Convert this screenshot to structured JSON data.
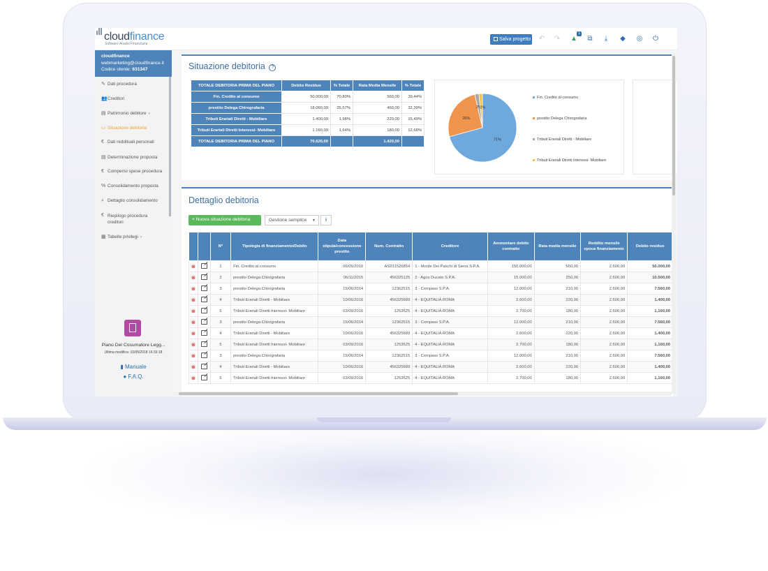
{
  "app": {
    "logo_main": "cloud",
    "logo_accent": "finance",
    "logo_sub": "Software Analisi Finanziaria",
    "save_label": "Salva progetto",
    "notification_count": "1"
  },
  "user": {
    "name": "cloudfinance",
    "email": "webmarketing@cloudfinance.it",
    "code_label": "Codice utente:",
    "code": "631347"
  },
  "sidebar": {
    "items": [
      {
        "label": "Dati procedura",
        "icon": "pencil-icon"
      },
      {
        "label": "Creditori",
        "icon": "users-icon"
      },
      {
        "label": "Patrimonio debitore",
        "icon": "document-icon"
      },
      {
        "label": "Situazione debitoria",
        "icon": "card-icon"
      },
      {
        "label": "Dati reddituali personali",
        "icon": "euro-icon"
      },
      {
        "label": "Determinazione proposta",
        "icon": "document-icon"
      },
      {
        "label": "Compensi spese procedura",
        "icon": "euro-icon"
      },
      {
        "label": "Consolidamento proposta",
        "icon": "percent-icon"
      },
      {
        "label": "Dettaglio consolidamento",
        "icon": "search-icon"
      },
      {
        "label": "Riepilogo procedura creditori",
        "icon": "euro-icon"
      },
      {
        "label": "Tabelle privilegi",
        "icon": "table-icon"
      }
    ],
    "app_name": "Piano Del Cosumatore Legg...",
    "last_modified": "Ultima modifica: 10/05/2018 16:33:18",
    "manual": "Manuale",
    "faq": "F.A.Q."
  },
  "situazione": {
    "title": "Situazione debitoria",
    "headers": [
      "TOTALE DEBITORIA PRIMA DEL PIANO",
      "Debito Residuo",
      "% Totale",
      "Rata Media Mensile",
      "% Totale"
    ],
    "rows": [
      [
        "Fin. Credito al consumo",
        "50.000,00",
        "70,80%",
        "560,00",
        "39,44%"
      ],
      [
        "prestito Delega Chirografaria",
        "18.060,00",
        "25,57%",
        "460,00",
        "32,39%"
      ],
      [
        "Tributi Erariali Diretti - Mobiliare",
        "1.400,00",
        "1,98%",
        "220,00",
        "15,49%"
      ],
      [
        "Tributi Erariali Diretti Interessi- Mobiliare",
        "1.160,00",
        "1,64%",
        "180,00",
        "12,68%"
      ]
    ],
    "total": [
      "TOTALE DEBITORIA PRIMA DEL PIANO",
      "70.620,00",
      "",
      "1.420,00",
      ""
    ]
  },
  "chart_data": {
    "type": "pie",
    "categories": [
      "Fin. Credito al consumo",
      "prestito Delega Chirografaria",
      "Tributi Erariali Diretti - Mobiliare",
      "Tributi Erariali Diretti Interessi- Mobiliare"
    ],
    "values": [
      70.8,
      25.57,
      1.98,
      1.64
    ],
    "data_labels": [
      "71%",
      "26%",
      "2%",
      "2%"
    ],
    "colors": [
      "#6fa8dc",
      "#f0954e",
      "#a8a8a8",
      "#f5c342"
    ],
    "legend_position": "right"
  },
  "dettaglio": {
    "title": "Dettaglio debitoria",
    "new_button": "Nuova situazione debitoria",
    "select_value": "Gestione semplice",
    "headers": [
      "",
      "",
      "N°",
      "Tipologia di finanziamento/Debito",
      "Data stipula/concessione prestito",
      "Num. Contratto",
      "Creditore",
      "Ammontare debito contratto",
      "Rata media mensile",
      "Reddito mensile epoca finanziamento",
      "Debito residuo"
    ],
    "rows": [
      [
        "1",
        "Fin. Credito al consumo",
        "06/05/2010",
        "AS231526854",
        "1 - Monte Dei Paschi di Siena S.P.A.",
        "150.000,00",
        "560,00",
        "2.600,00",
        "50.000,00"
      ],
      [
        "2",
        "prestito Delega Chirografaria",
        "06/11/2015",
        "456325125",
        "2 - Agos Ducato S.P.A.",
        "15.000,00",
        "250,00",
        "2.600,00",
        "10.500,00"
      ],
      [
        "3",
        "prestito Delega Chirografaria",
        "15/06/2014",
        "12362515",
        "3 - Compass S.P.A.",
        "12.000,00",
        "210,00",
        "2.600,00",
        "7.560,00"
      ],
      [
        "4",
        "Tributi Erariali Diretti - Mobiliare",
        "10/06/2016",
        "456325689",
        "4 - EQUITALIA ROMA",
        "2.600,00",
        "220,00",
        "2.600,00",
        "1.400,00"
      ],
      [
        "5",
        "Tributi Erariali Diretti Interessi- Mobiliare",
        "03/09/2016",
        "1253625",
        "4 - EQUITALIA ROMA",
        "2.700,00",
        "180,00",
        "2.600,00",
        "1.160,00"
      ],
      [
        "3",
        "prestito Delega Chirografaria",
        "15/06/2014",
        "12362515",
        "3 - Compass S.P.A.",
        "12.000,00",
        "210,00",
        "2.600,00",
        "7.560,00"
      ],
      [
        "4",
        "Tributi Erariali Diretti - Mobiliare",
        "10/06/2016",
        "456325689",
        "4 - EQUITALIA ROMA",
        "2.600,00",
        "220,00",
        "2.600,00",
        "1.400,00"
      ],
      [
        "5",
        "Tributi Erariali Diretti Interessi- Mobiliare",
        "03/09/2016",
        "1253625",
        "4 - EQUITALIA ROMA",
        "2.700,00",
        "180,00",
        "2.600,00",
        "1.160,00"
      ],
      [
        "3",
        "prestito Delega Chirografaria",
        "15/06/2014",
        "12362515",
        "3 - Compass S.P.A.",
        "12.000,00",
        "210,00",
        "2.600,00",
        "7.560,00"
      ],
      [
        "4",
        "Tributi Erariali Diretti - Mobiliare",
        "10/06/2016",
        "456325689",
        "4 - EQUITALIA ROMA",
        "2.600,00",
        "220,00",
        "2.600,00",
        "1.400,00"
      ],
      [
        "5",
        "Tributi Erariali Diretti Interessi- Mobiliare",
        "03/09/2016",
        "1253625",
        "4 - EQUITALIA ROMA",
        "2.700,00",
        "180,00",
        "2.600,00",
        "1.160,00"
      ]
    ]
  }
}
